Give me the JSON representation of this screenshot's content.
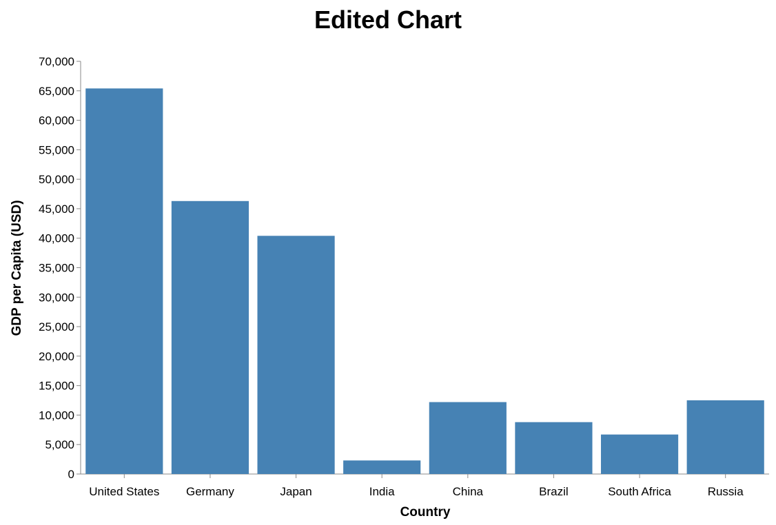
{
  "chart_data": {
    "type": "bar",
    "title": "Edited Chart",
    "xlabel": "Country",
    "ylabel": "GDP per Capita (USD)",
    "categories": [
      "United States",
      "Germany",
      "Japan",
      "India",
      "China",
      "Brazil",
      "South Africa",
      "Russia"
    ],
    "values": [
      65400,
      46300,
      40400,
      2300,
      12200,
      8800,
      6700,
      12500
    ],
    "ylim": [
      0,
      70000
    ],
    "yticks": [
      0,
      5000,
      10000,
      15000,
      20000,
      25000,
      30000,
      35000,
      40000,
      45000,
      50000,
      55000,
      60000,
      65000,
      70000
    ],
    "grid": false,
    "bar_color": "#4682b4"
  }
}
